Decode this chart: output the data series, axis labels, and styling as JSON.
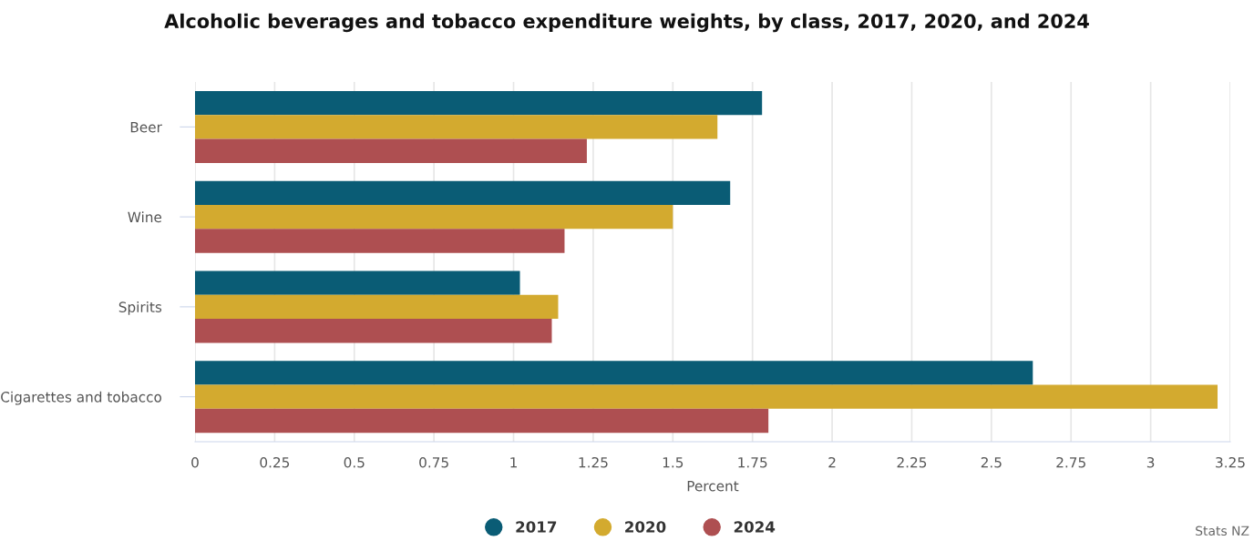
{
  "chart_data": {
    "type": "bar",
    "orientation": "horizontal",
    "title": "Alcoholic beverages and tobacco expenditure weights, by class, 2017, 2020, and 2024",
    "xlabel": "Percent",
    "categories": [
      "Beer",
      "Wine",
      "Spirits",
      "Cigarettes and tobacco"
    ],
    "series": [
      {
        "name": "2017",
        "color": "#0a5c75",
        "values": [
          1.78,
          1.68,
          1.02,
          2.63
        ]
      },
      {
        "name": "2020",
        "color": "#d3aa2f",
        "values": [
          1.64,
          1.5,
          1.14,
          3.21
        ]
      },
      {
        "name": "2024",
        "color": "#ae4f51",
        "values": [
          1.23,
          1.16,
          1.12,
          1.8
        ]
      }
    ],
    "xlim": [
      0,
      3.25
    ],
    "xticks": [
      0,
      0.25,
      0.5,
      0.75,
      1,
      1.25,
      1.5,
      1.75,
      2,
      2.25,
      2.5,
      2.75,
      3,
      3.25
    ],
    "grid": "x",
    "legend": "bottom",
    "annotations": [
      "Stats NZ"
    ]
  }
}
